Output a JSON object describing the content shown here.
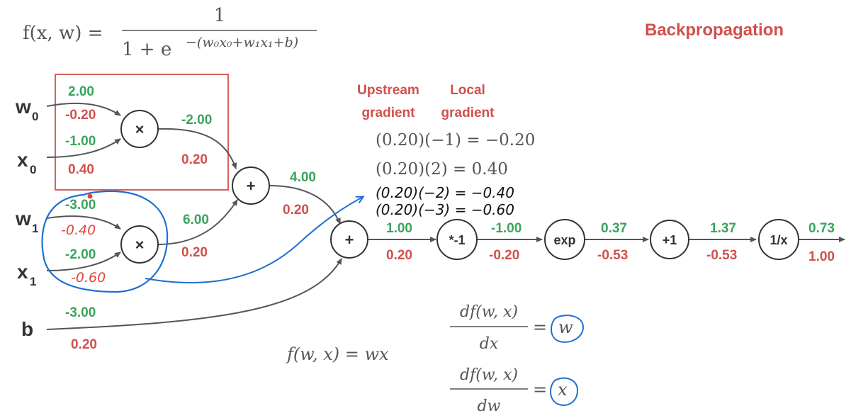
{
  "title": "Backpropagation",
  "colors": {
    "forward": "#3aa35c",
    "backward": "#d0504c",
    "wire": "#555555",
    "node": "#333333",
    "formula": "#555555",
    "ink_blue": "#1f6fd1",
    "ink_black": "#111111",
    "ink_red": "#e0453c",
    "box": "#d0504c"
  },
  "formula": {
    "lhs": "f(x, w) =",
    "numerator": "1",
    "denominator": "1 + e",
    "exponent": "−(w₀x₀+w₁x₁+b)"
  },
  "inputs": {
    "w0": {
      "label": "w",
      "sub": "0",
      "fwd": "2.00",
      "grad": "-0.20"
    },
    "x0": {
      "label": "x",
      "sub": "0",
      "fwd": "-1.00",
      "grad": "0.40"
    },
    "w1": {
      "label": "w",
      "sub": "1",
      "fwd": "-3.00",
      "grad": "-0.40"
    },
    "x1": {
      "label": "x",
      "sub": "1",
      "fwd": "-2.00",
      "grad": "-0.60"
    },
    "b": {
      "label": "b",
      "fwd": "-3.00",
      "grad": "0.20"
    }
  },
  "nodes": {
    "mul0": {
      "label": "×",
      "fwd": "-2.00",
      "grad": "0.20"
    },
    "mul1": {
      "label": "×",
      "fwd": "6.00",
      "grad": "0.20"
    },
    "add0": {
      "label": "+",
      "fwd": "4.00",
      "grad": "0.20"
    },
    "add1": {
      "label": "+",
      "fwd": "1.00",
      "grad": "0.20"
    },
    "neg": {
      "label": "*-1",
      "fwd": "-1.00",
      "grad": "-0.20"
    },
    "exp": {
      "label": "exp",
      "fwd": "0.37",
      "grad": "-0.53"
    },
    "plus1": {
      "label": "+1",
      "fwd": "1.37",
      "grad": "-0.53"
    },
    "inv": {
      "label": "1/x",
      "fwd": "0.73",
      "grad": "1.00"
    }
  },
  "gradient_headers": {
    "upstream_line1": "Upstream",
    "upstream_line2": "gradient",
    "local_line1": "Local",
    "local_line2": "gradient"
  },
  "gradient_equations": [
    "(0.20)(−1) = −0.20",
    "(0.20)(2) = 0.40"
  ],
  "handwritten": {
    "eq1": "(0.20)(−2) = −0.40",
    "eq2": "(0.20)(−3) = −0.60"
  },
  "local_rule": {
    "f_def": "f(w, x) = wx",
    "dfdx_num": "df(w, x)",
    "dfdx_den": "dx",
    "dfdx_val": "w",
    "dfdw_num": "df(w, x)",
    "dfdw_den": "dw",
    "dfdw_val": "x",
    "eq": "="
  }
}
